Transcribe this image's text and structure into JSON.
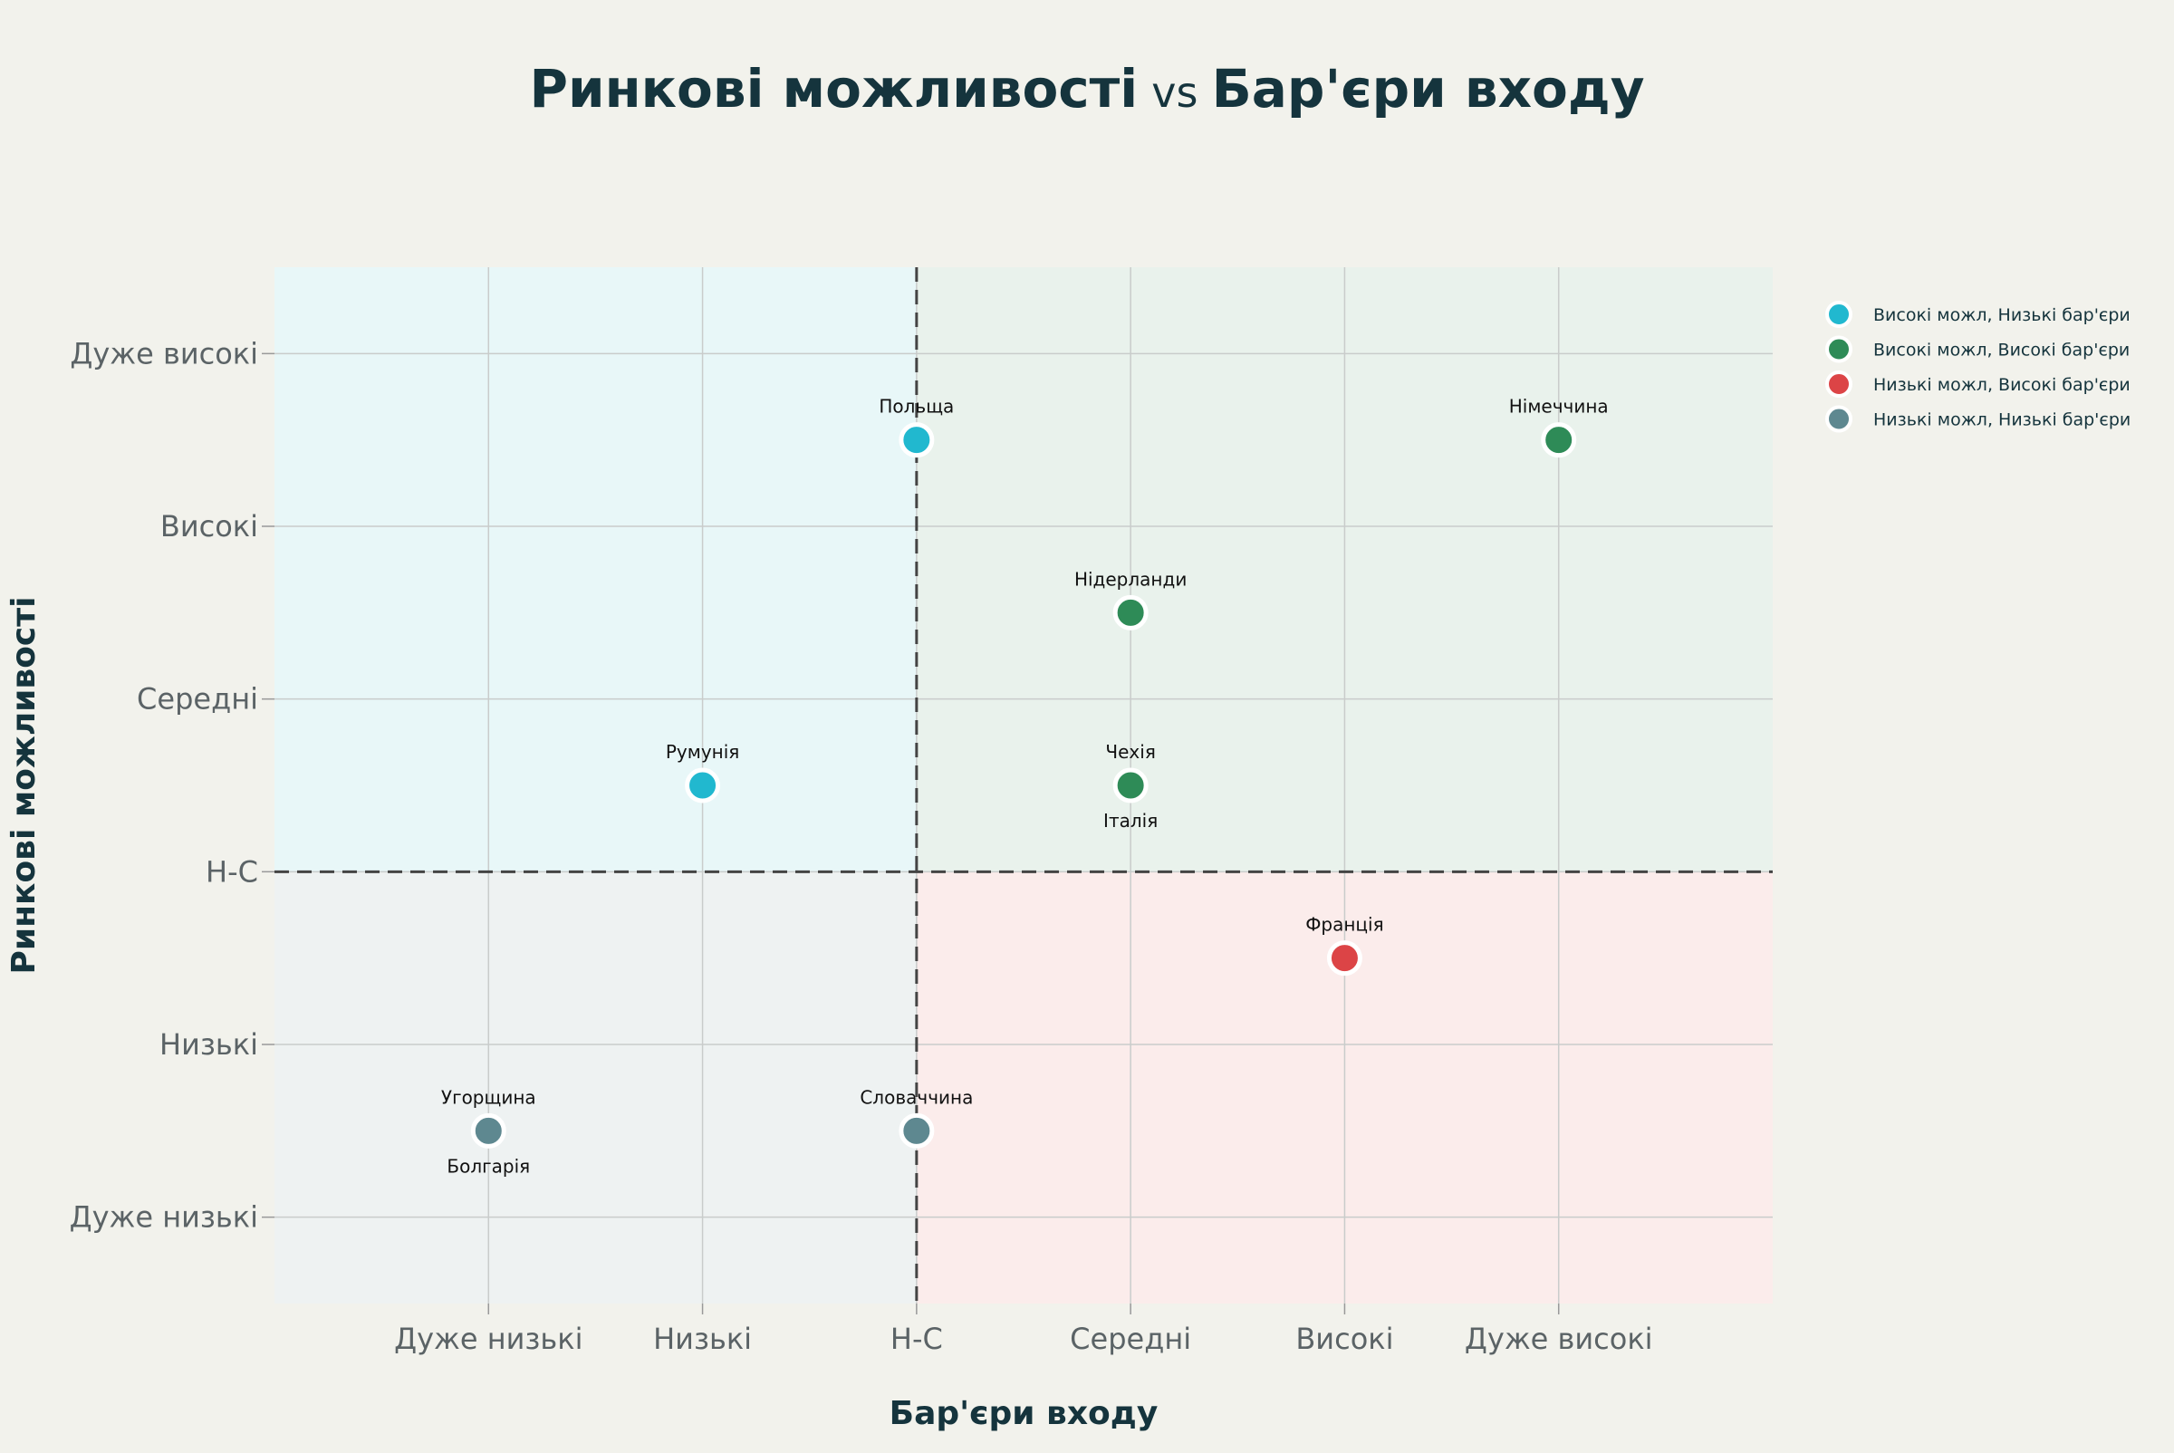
{
  "chart_data": {
    "type": "scatter",
    "title_parts": [
      "Ринкові можливості",
      "vs",
      "Бар'єри входу"
    ],
    "xlabel": "Бар'єри входу",
    "ylabel": "Ринкові можливості",
    "x_tick_labels": [
      "Дуже низькі",
      "Низькі",
      "Н-С",
      "Середні",
      "Високі",
      "Дуже високі"
    ],
    "y_tick_labels": [
      "Дуже низькі",
      "Низькі",
      "Н-С",
      "Середні",
      "Високі",
      "Дуже високі"
    ],
    "x_ticks": [
      1,
      2,
      3,
      4,
      5,
      6
    ],
    "y_ticks": [
      1,
      2,
      3,
      4,
      5,
      6
    ],
    "xlim": [
      0,
      7
    ],
    "ylim": [
      0.5,
      6.5
    ],
    "divider_x": 3,
    "divider_y": 3,
    "grid": true,
    "legend_position": "right",
    "quadrant_colors": {
      "top_left": "#e8f7f8",
      "top_right": "#e9f2ec",
      "bottom_right": "#fbeceb",
      "bottom_left": "#eef2f2"
    },
    "series": [
      {
        "name": "Високі можл, Низькі бар'єри",
        "color": "#21b8cf",
        "points": [
          {
            "label": "Польща",
            "x": 3,
            "y": 5.5
          },
          {
            "label": "Румунія",
            "x": 2,
            "y": 3.5
          }
        ]
      },
      {
        "name": "Високі можл, Високі бар'єри",
        "color": "#2e8b57",
        "points": [
          {
            "label": "Німеччина",
            "x": 6,
            "y": 5.5
          },
          {
            "label": "Нідерланди",
            "x": 4,
            "y": 4.5
          },
          {
            "label": "Чехія",
            "x": 4,
            "y": 3.5
          },
          {
            "label": "Італія",
            "x": 4,
            "y": 3.5
          }
        ]
      },
      {
        "name": "Низькі можл, Високі бар'єри",
        "color": "#dc4446",
        "points": [
          {
            "label": "Франція",
            "x": 5,
            "y": 2.5
          }
        ]
      },
      {
        "name": "Низькі можл, Низькі бар'єри",
        "color": "#5e8890",
        "points": [
          {
            "label": "Угорщина",
            "x": 1,
            "y": 1.5
          },
          {
            "label": "Болгарія",
            "x": 1,
            "y": 1.5
          },
          {
            "label": "Словаччина",
            "x": 3,
            "y": 1.5
          }
        ]
      }
    ]
  }
}
